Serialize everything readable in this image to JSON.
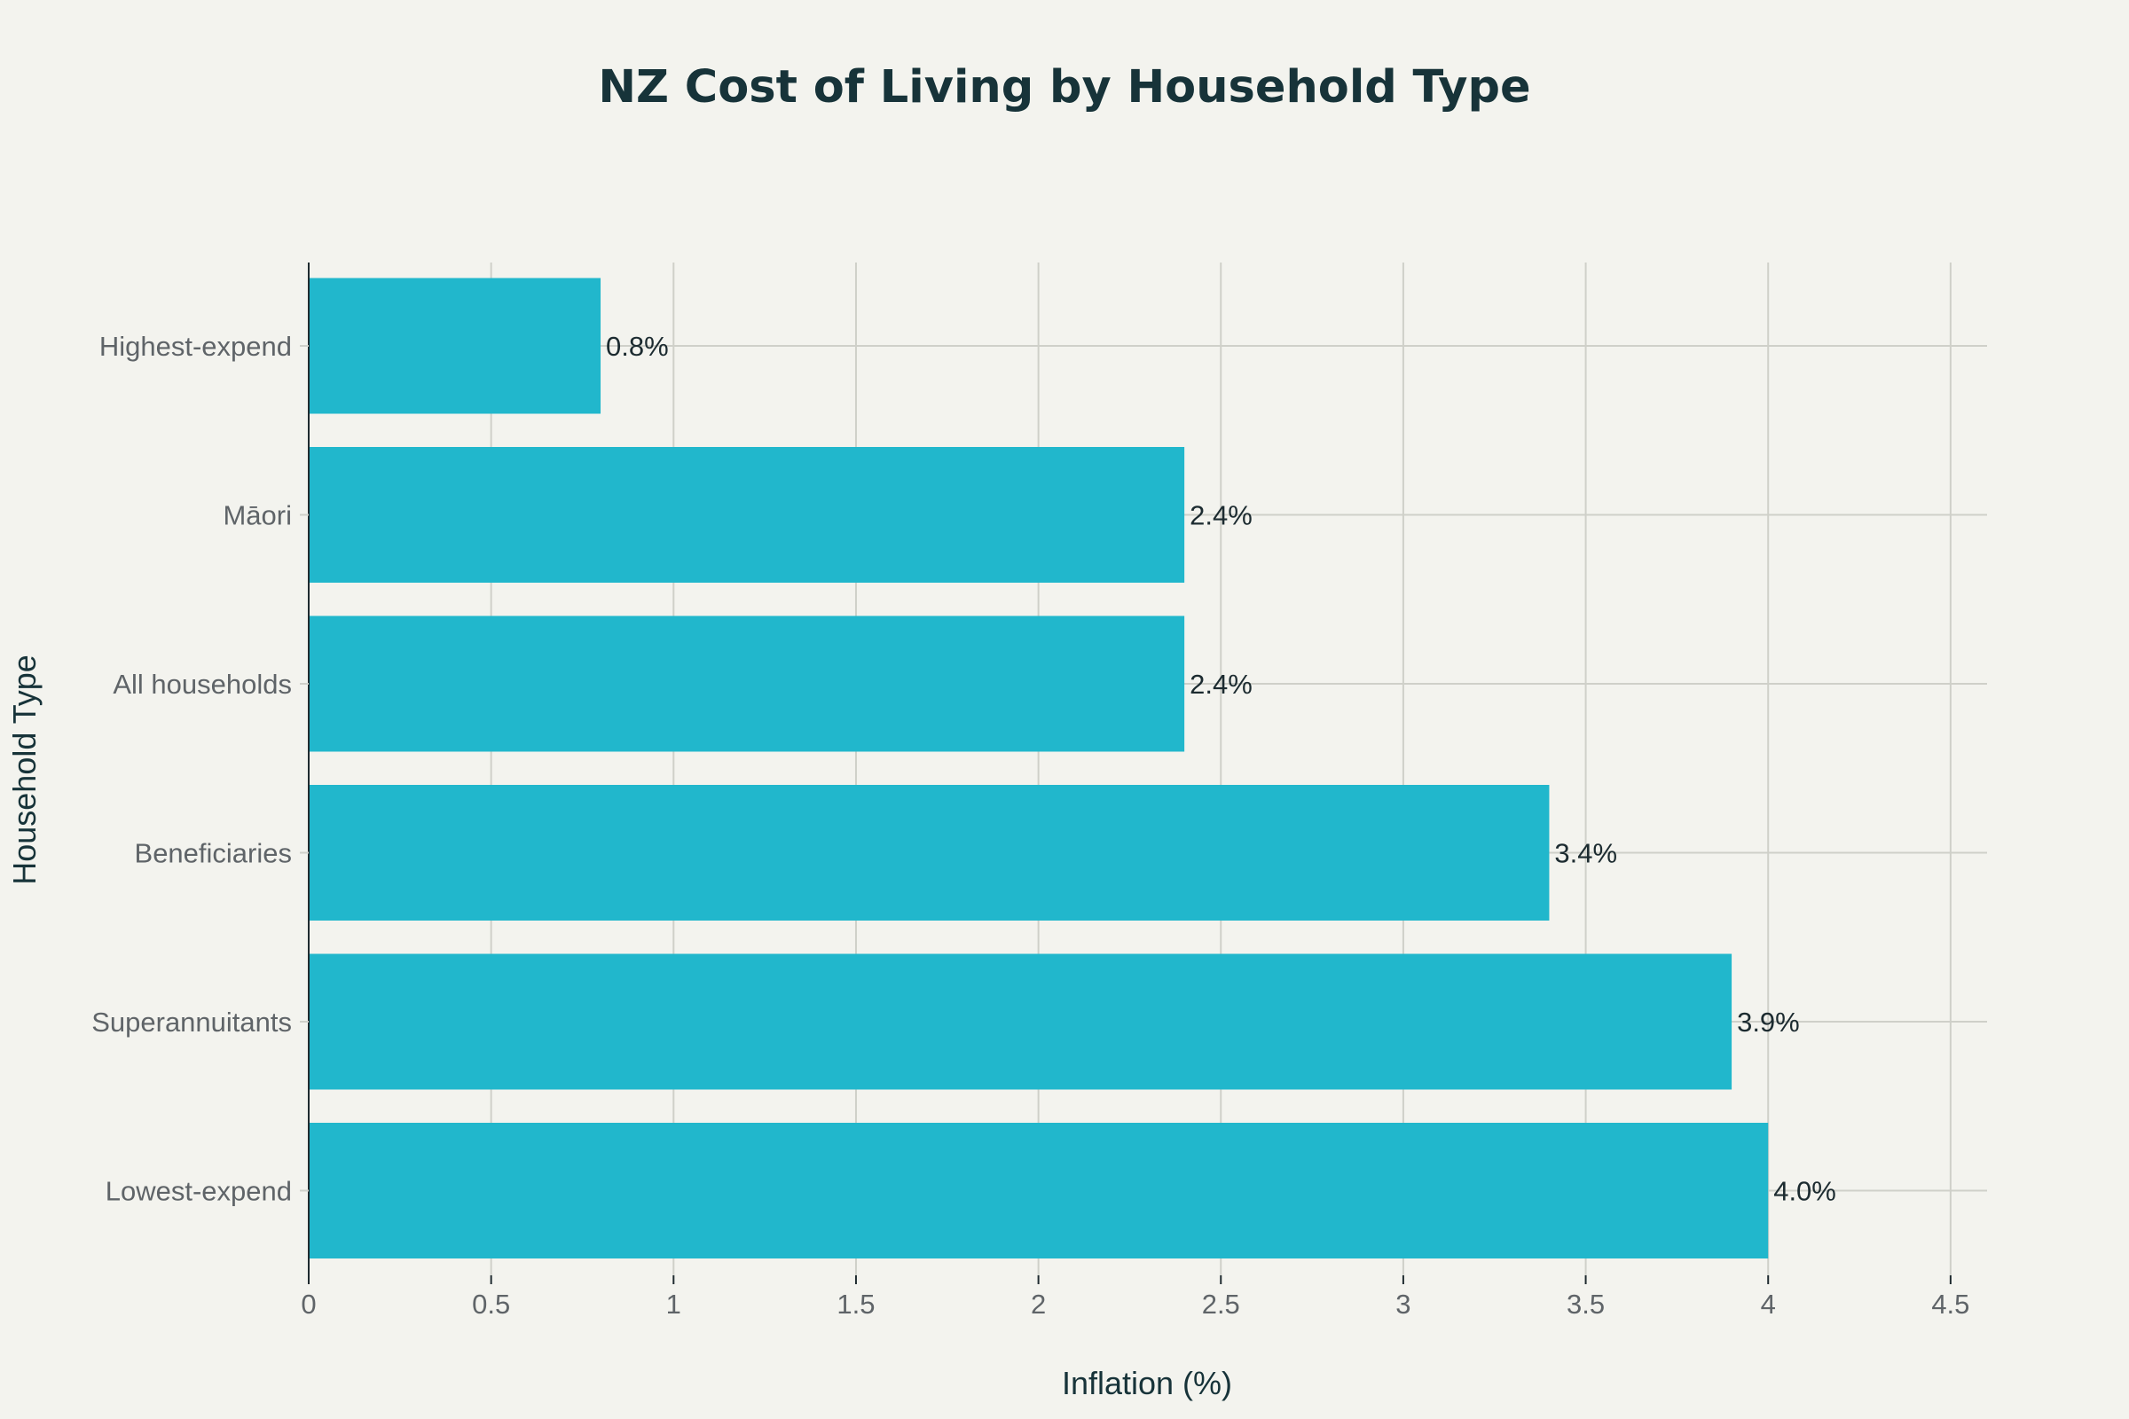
{
  "chart_data": {
    "type": "bar",
    "orientation": "horizontal",
    "title": "NZ Cost of Living by Household Type",
    "xlabel": "Inflation (%)",
    "ylabel": "Household Type",
    "categories": [
      "Highest-expend",
      "Māori",
      "All households",
      "Beneficiaries",
      "Superannuitants",
      "Lowest-expend"
    ],
    "values": [
      0.8,
      2.4,
      2.4,
      3.4,
      3.9,
      4.0
    ],
    "data_labels": [
      "0.8%",
      "2.4%",
      "2.4%",
      "3.4%",
      "3.9%",
      "4.0%"
    ],
    "x_ticks": [
      0,
      0.5,
      1,
      1.5,
      2,
      2.5,
      3,
      3.5,
      4,
      4.5
    ],
    "x_tick_labels": [
      "0",
      "0.5",
      "1",
      "1.5",
      "2",
      "2.5",
      "3",
      "3.5",
      "4",
      "4.5"
    ],
    "xlim": [
      0,
      4.6
    ],
    "grid": true,
    "legend": "none",
    "colors": {
      "bar": "#21b7cc",
      "background": "#f3f3ee",
      "grid": "#cfd0c9",
      "axis": "#1f2b30"
    }
  }
}
